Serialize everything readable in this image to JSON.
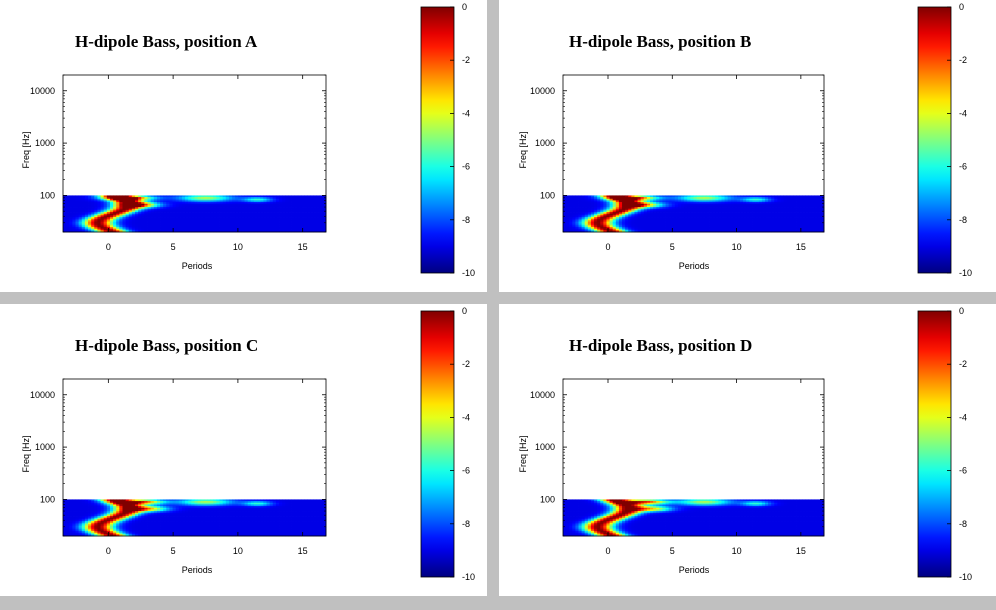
{
  "chart_data": [
    {
      "type": "heatmap",
      "title": "H-dipole Bass, position A",
      "xlabel": "Periods",
      "ylabel": "Freq [Hz]",
      "x_ticks": [
        "0",
        "5",
        "10",
        "15"
      ],
      "y_ticks": [
        "100",
        "1000",
        "10000"
      ],
      "xlim": [
        -3.5,
        16.8
      ],
      "ylim": [
        20,
        20000
      ],
      "y_scale": "log",
      "data_freq_range": [
        20,
        100
      ],
      "colorbar_ticks": [
        "0",
        "-2",
        "-4",
        "-6",
        "-8",
        "-10"
      ],
      "colorbar_range": [
        -10,
        0
      ],
      "colormap": "jet",
      "grid": false
    },
    {
      "type": "heatmap",
      "title": "H-dipole Bass, position B",
      "xlabel": "Periods",
      "ylabel": "Freq [Hz]",
      "x_ticks": [
        "0",
        "5",
        "10",
        "15"
      ],
      "y_ticks": [
        "100",
        "1000",
        "10000"
      ],
      "xlim": [
        -3.5,
        16.8
      ],
      "ylim": [
        20,
        20000
      ],
      "y_scale": "log",
      "data_freq_range": [
        20,
        100
      ],
      "colorbar_ticks": [
        "0",
        "-2",
        "-4",
        "-6",
        "-8",
        "-10"
      ],
      "colorbar_range": [
        -10,
        0
      ],
      "colormap": "jet",
      "grid": false
    },
    {
      "type": "heatmap",
      "title": "H-dipole Bass, position C",
      "xlabel": "Periods",
      "ylabel": "Freq [Hz]",
      "x_ticks": [
        "0",
        "5",
        "10",
        "15"
      ],
      "y_ticks": [
        "100",
        "1000",
        "10000"
      ],
      "xlim": [
        -3.5,
        16.8
      ],
      "ylim": [
        20,
        20000
      ],
      "y_scale": "log",
      "data_freq_range": [
        20,
        100
      ],
      "colorbar_ticks": [
        "0",
        "-2",
        "-4",
        "-6",
        "-8",
        "-10"
      ],
      "colorbar_range": [
        -10,
        0
      ],
      "colormap": "jet",
      "grid": false
    },
    {
      "type": "heatmap",
      "title": "H-dipole Bass, position D",
      "xlabel": "Periods",
      "ylabel": "Freq [Hz]",
      "x_ticks": [
        "0",
        "5",
        "10",
        "15"
      ],
      "y_ticks": [
        "100",
        "1000",
        "10000"
      ],
      "xlim": [
        -3.5,
        16.8
      ],
      "ylim": [
        20,
        20000
      ],
      "y_scale": "log",
      "data_freq_range": [
        20,
        100
      ],
      "colorbar_ticks": [
        "0",
        "-2",
        "-4",
        "-6",
        "-8",
        "-10"
      ],
      "colorbar_range": [
        -10,
        0
      ],
      "colormap": "jet",
      "grid": false
    }
  ]
}
